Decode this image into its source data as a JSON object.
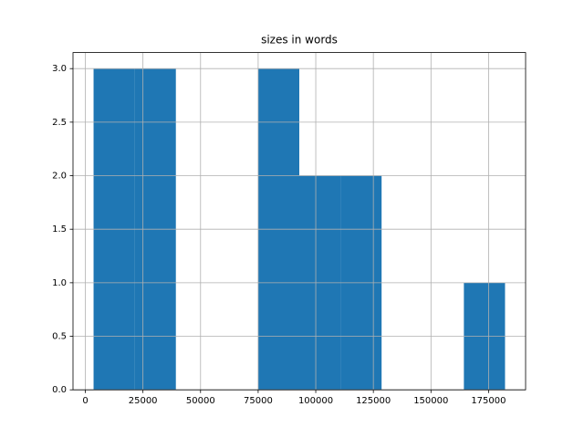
{
  "chart_data": {
    "type": "histogram",
    "title": "sizes in words",
    "bins": [
      3571,
      21429,
      39286,
      57143,
      75000,
      92857,
      110714,
      128571,
      146429,
      164286,
      182143
    ],
    "counts": [
      3,
      3,
      0,
      0,
      3,
      2,
      2,
      0,
      0,
      1
    ],
    "color": "#1f77b4",
    "xlim": [
      -5357,
      191071
    ],
    "xticks": [
      0,
      25000,
      50000,
      75000,
      100000,
      125000,
      150000,
      175000
    ],
    "ylim": [
      0,
      3.15
    ],
    "yticks": [
      {
        "value": 0,
        "label": "0.0"
      },
      {
        "value": 0.5,
        "label": "0.5"
      },
      {
        "value": 1,
        "label": "1.0"
      },
      {
        "value": 1.5,
        "label": "1.5"
      },
      {
        "value": 2,
        "label": "2.0"
      },
      {
        "value": 2.5,
        "label": "2.5"
      },
      {
        "value": 3,
        "label": "3.0"
      }
    ],
    "grid": true
  }
}
